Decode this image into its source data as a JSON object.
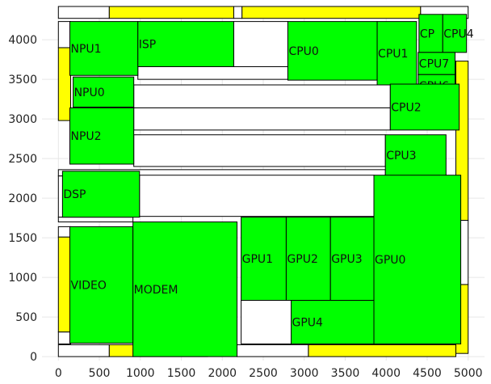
{
  "chart_data": {
    "type": "floorplan",
    "title": "",
    "xlabel": "",
    "ylabel": "",
    "xlim": [
      -200,
      5200
    ],
    "ylim": [
      -50,
      4420
    ],
    "grid": true,
    "xticks": [
      0,
      500,
      1000,
      1500,
      2000,
      2500,
      3000,
      3500,
      4000,
      4500,
      5000
    ],
    "yticks": [
      0,
      500,
      1000,
      1500,
      2000,
      2500,
      3000,
      3500,
      4000
    ],
    "colors": {
      "block": "#00ff00",
      "io": "#ffff00",
      "whitespace": "#ffffff",
      "outline": "#000000"
    },
    "blocks": [
      {
        "label": "NPU1",
        "x0": 140,
        "x1": 970,
        "y0": 3550,
        "y1": 4230
      },
      {
        "label": "ISP",
        "x0": 970,
        "x1": 2140,
        "y0": 3660,
        "y1": 4230
      },
      {
        "label": "CPU0",
        "x0": 2800,
        "x1": 3890,
        "y0": 3490,
        "y1": 4230
      },
      {
        "label": "CPU1",
        "x0": 3890,
        "x1": 4370,
        "y0": 3430,
        "y1": 4230
      },
      {
        "label": "CP",
        "x0": 4400,
        "x1": 4690,
        "y0": 3840,
        "y1": 4320
      },
      {
        "label": "CPU4",
        "x0": 4690,
        "x1": 4980,
        "y0": 3840,
        "y1": 4320
      },
      {
        "label": "CPU7",
        "x0": 4390,
        "x1": 4840,
        "y0": 3560,
        "y1": 3840
      },
      {
        "label": "CPU6",
        "x0": 4390,
        "x1": 4840,
        "y0": 3280,
        "y1": 3560
      },
      {
        "label": "NPU0",
        "x0": 180,
        "x1": 920,
        "y0": 3150,
        "y1": 3530
      },
      {
        "label": "CPU2",
        "x0": 4050,
        "x1": 4890,
        "y0": 2860,
        "y1": 3440
      },
      {
        "label": "NPU2",
        "x0": 140,
        "x1": 920,
        "y0": 2430,
        "y1": 3140
      },
      {
        "label": "CPU3",
        "x0": 3990,
        "x1": 4730,
        "y0": 2280,
        "y1": 2800
      },
      {
        "label": "DSP",
        "x0": 50,
        "x1": 990,
        "y0": 1760,
        "y1": 2340
      },
      {
        "label": "GPU1",
        "x0": 2230,
        "x1": 2780,
        "y0": 710,
        "y1": 1760
      },
      {
        "label": "GPU2",
        "x0": 2780,
        "x1": 3320,
        "y0": 710,
        "y1": 1760
      },
      {
        "label": "GPU3",
        "x0": 3320,
        "x1": 3850,
        "y0": 710,
        "y1": 1760
      },
      {
        "label": "GPU0",
        "x0": 3850,
        "x1": 4910,
        "y0": 160,
        "y1": 2290
      },
      {
        "label": "VIDEO",
        "x0": 140,
        "x1": 910,
        "y0": 170,
        "y1": 1640
      },
      {
        "label": "MODEM",
        "x0": 910,
        "x1": 2180,
        "y0": 0,
        "y1": 1700
      },
      {
        "label": "GPU4",
        "x0": 2840,
        "x1": 3850,
        "y0": 160,
        "y1": 710
      }
    ],
    "io_pads": [
      {
        "x0": 620,
        "x1": 2140,
        "y0": 4270,
        "y1": 4420
      },
      {
        "x0": 2240,
        "x1": 4420,
        "y0": 4270,
        "y1": 4420
      },
      {
        "x0": 0,
        "x1": 150,
        "y0": 2980,
        "y1": 3900
      },
      {
        "x0": 0,
        "x1": 150,
        "y0": 310,
        "y1": 1510
      },
      {
        "x0": 4850,
        "x1": 5000,
        "y0": 1720,
        "y1": 3730
      },
      {
        "x0": 4850,
        "x1": 5000,
        "y0": 40,
        "y1": 910
      },
      {
        "x0": 620,
        "x1": 1820,
        "y0": 0,
        "y1": 150
      },
      {
        "x0": 3050,
        "x1": 4850,
        "y0": 0,
        "y1": 150
      }
    ],
    "whitespace": [
      {
        "x0": 0,
        "x1": 620,
        "y0": 4270,
        "y1": 4420
      },
      {
        "x0": 2140,
        "x1": 2240,
        "y0": 4270,
        "y1": 4420
      },
      {
        "x0": 4420,
        "x1": 5000,
        "y0": 4270,
        "y1": 4420
      },
      {
        "x0": 0,
        "x1": 150,
        "y0": 3900,
        "y1": 4230
      },
      {
        "x0": 2140,
        "x1": 2800,
        "y0": 3660,
        "y1": 4230
      },
      {
        "x0": 970,
        "x1": 2800,
        "y0": 3500,
        "y1": 3660
      },
      {
        "x0": 920,
        "x1": 4050,
        "y0": 3140,
        "y1": 3430
      },
      {
        "x0": 920,
        "x1": 4050,
        "y0": 2860,
        "y1": 3140
      },
      {
        "x0": 920,
        "x1": 3990,
        "y0": 2400,
        "y1": 2800
      },
      {
        "x0": 0,
        "x1": 3990,
        "y0": 2280,
        "y1": 2360
      },
      {
        "x0": 990,
        "x1": 3850,
        "y0": 1770,
        "y1": 2290
      },
      {
        "x0": 0,
        "x1": 60,
        "y0": 1760,
        "y1": 2280
      },
      {
        "x0": 0,
        "x1": 910,
        "y0": 1700,
        "y1": 1760
      },
      {
        "x0": 0,
        "x1": 150,
        "y0": 1510,
        "y1": 1640
      },
      {
        "x0": 2230,
        "x1": 2840,
        "y0": 160,
        "y1": 710
      },
      {
        "x0": 0,
        "x1": 150,
        "y0": 160,
        "y1": 310
      },
      {
        "x0": 0,
        "x1": 620,
        "y0": 0,
        "y1": 150
      },
      {
        "x0": 2180,
        "x1": 3050,
        "y0": 0,
        "y1": 150
      },
      {
        "x0": 4850,
        "x1": 5000,
        "y0": 910,
        "y1": 1720
      }
    ]
  }
}
